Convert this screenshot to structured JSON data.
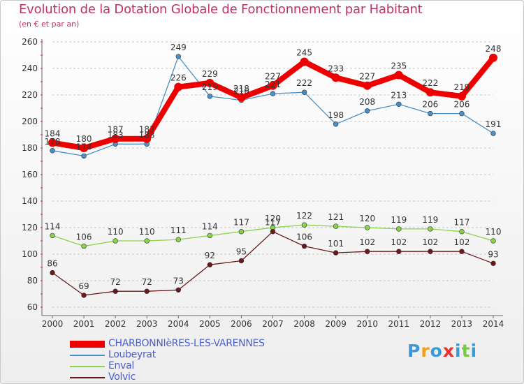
{
  "chart_data": {
    "type": "line",
    "title": "Evolution de la Dotation Globale de Fonctionnement par Habitant",
    "subtitle": "(en € et par an)",
    "xlabel": "",
    "ylabel": "",
    "ylim": [
      60,
      260
    ],
    "y_ticks": [
      60,
      80,
      100,
      120,
      140,
      160,
      180,
      200,
      220,
      240,
      260
    ],
    "x": [
      "2000",
      "2001",
      "2002",
      "2003",
      "2004",
      "2005",
      "2006",
      "2007",
      "2008",
      "2009",
      "2010",
      "2011",
      "2012",
      "2013",
      "2014"
    ],
    "grid": "horizontal dashed",
    "legend_position": "bottom-left",
    "series": [
      {
        "name": "Loubeyrat",
        "color": "#4a90c8",
        "values": [
          178,
          174,
          183,
          183,
          249,
          219,
          216,
          221,
          222,
          198,
          208,
          213,
          206,
          206,
          191
        ],
        "labels": [
          "178",
          "174",
          "183",
          "183",
          "249",
          "219",
          "216",
          "221",
          "222",
          "198",
          "208",
          "213",
          "206",
          "206",
          "191"
        ]
      },
      {
        "name": "Enval",
        "color": "#88d44a",
        "values": [
          114,
          106,
          110,
          110,
          111,
          114,
          117,
          120,
          122,
          121,
          120,
          119,
          119,
          117,
          110
        ],
        "labels": [
          "114",
          "106",
          "110",
          "110",
          "111",
          "114",
          "117",
          "120",
          "122",
          "121",
          "120",
          "119",
          "119",
          "117",
          "110"
        ]
      },
      {
        "name": "Volvic",
        "color": "#6b1a1a",
        "values": [
          86,
          69,
          72,
          72,
          73,
          92,
          95,
          117,
          106,
          101,
          102,
          102,
          102,
          102,
          93
        ],
        "labels": [
          "86",
          "69",
          "72",
          "72",
          "73",
          "92",
          "95",
          "117",
          "106",
          "101",
          "102",
          "102",
          "102",
          "102",
          "93"
        ]
      },
      {
        "name": "CHARBONNIèRES-LES-VARENNES",
        "color": "#ee0000",
        "values": [
          184,
          180,
          187,
          187,
          226,
          229,
          218,
          227,
          245,
          233,
          227,
          235,
          222,
          219,
          248
        ],
        "labels": [
          "184",
          "180",
          "187",
          "187",
          "226",
          "229",
          "218",
          "227",
          "245",
          "233",
          "227",
          "235",
          "222",
          "219",
          "248"
        ]
      }
    ],
    "legend": [
      {
        "name": "CHARBONNIèRES-LES-VARENNES",
        "color": "#ee0000"
      },
      {
        "name": "Loubeyrat",
        "color": "#4a90c8"
      },
      {
        "name": "Enval",
        "color": "#88d44a"
      },
      {
        "name": "Volvic",
        "color": "#6b1a1a"
      }
    ]
  },
  "logo": {
    "letters": [
      "P",
      "r",
      "o",
      "x",
      "i",
      "t",
      "i"
    ],
    "colors": [
      "#3a9ad9",
      "#f0a020",
      "#3a9ad9",
      "#ee3030",
      "#3a9ad9",
      "#7ac943",
      "#3a9ad9"
    ]
  }
}
